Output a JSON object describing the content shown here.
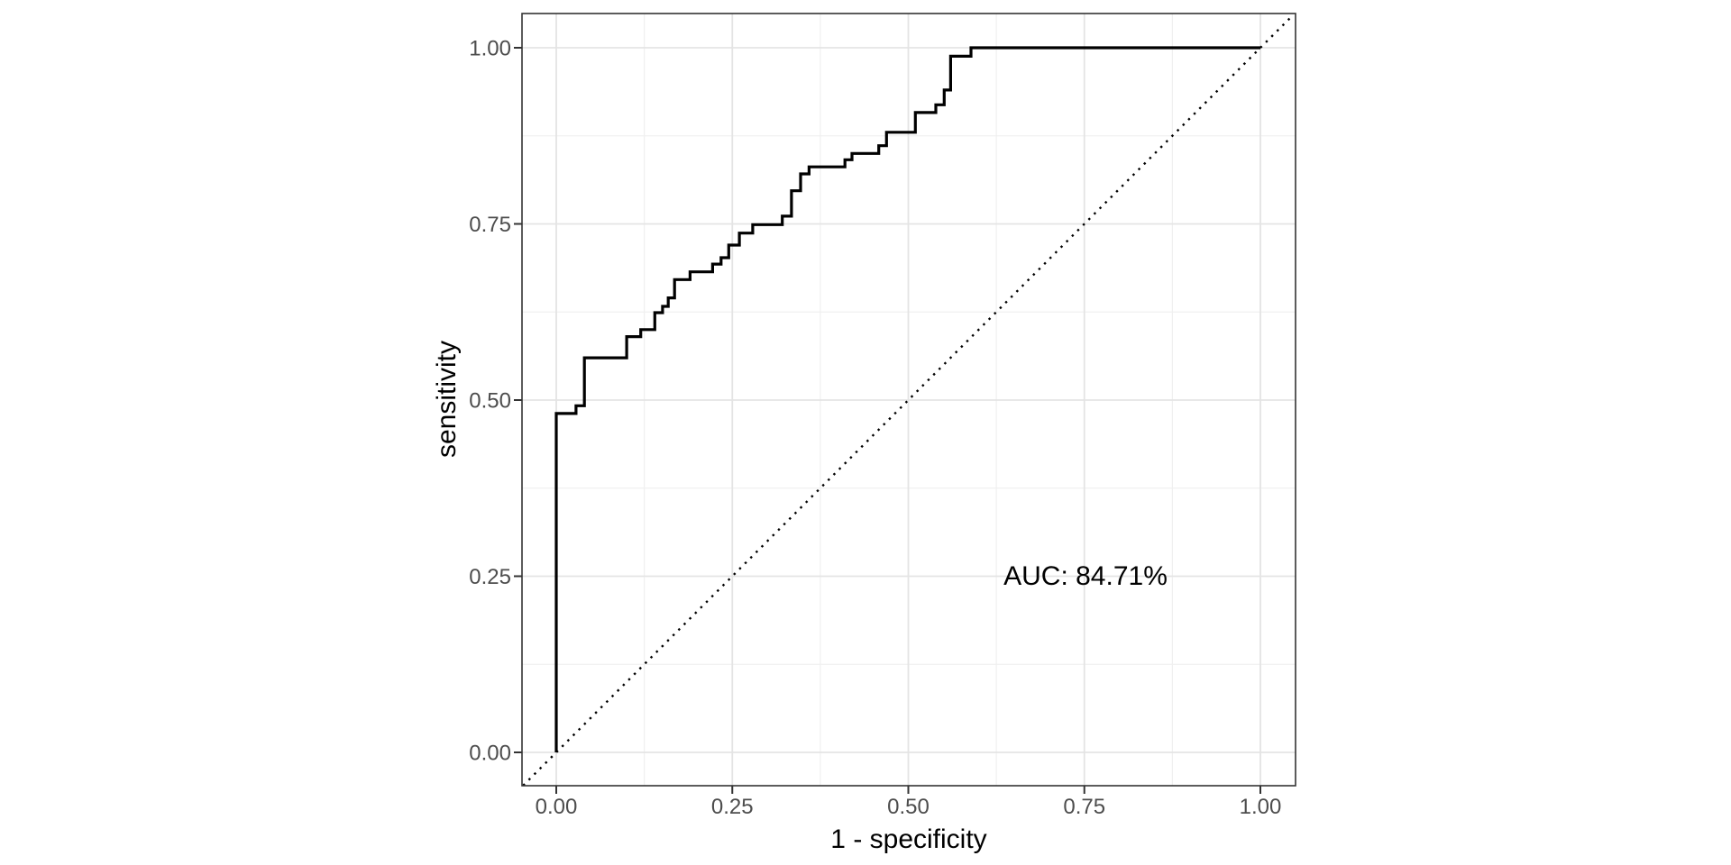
{
  "chart_data": {
    "type": "line",
    "subtype": "roc-step-curve",
    "title": "",
    "xlabel": "1 - specificity",
    "ylabel": "sensitivity",
    "x_ticks": {
      "values": [
        0,
        0.25,
        0.5,
        0.75,
        1
      ],
      "labels": [
        "0.00",
        "0.25",
        "0.50",
        "0.75",
        "1.00"
      ]
    },
    "y_ticks": {
      "values": [
        0,
        0.25,
        0.5,
        0.75,
        1
      ],
      "labels": [
        "0.00",
        "0.25",
        "0.50",
        "0.75",
        "1.00"
      ]
    },
    "x_minor_ticks": [
      0.125,
      0.375,
      0.625,
      0.875
    ],
    "y_minor_ticks": [
      0.125,
      0.375,
      0.625,
      0.875
    ],
    "xlim": [
      -0.049,
      1.05
    ],
    "ylim": [
      -0.047,
      1.047
    ],
    "grid": true,
    "legend_position": "none",
    "annotation": {
      "label": "AUC: 84.71%",
      "x": 0.75,
      "y": 0.25
    },
    "auc_percent": 84.71,
    "diagonal_reference": {
      "style": "dotted",
      "from": [
        -0.047,
        -0.047
      ],
      "to": [
        1.047,
        1.047
      ]
    },
    "series": [
      {
        "name": "roc-curve",
        "points": [
          [
            0,
            0
          ],
          [
            0,
            0.481
          ],
          [
            0.028,
            0.481
          ],
          [
            0.028,
            0.492
          ],
          [
            0.04,
            0.492
          ],
          [
            0.04,
            0.56
          ],
          [
            0.1,
            0.56
          ],
          [
            0.1,
            0.59
          ],
          [
            0.12,
            0.59
          ],
          [
            0.12,
            0.6
          ],
          [
            0.14,
            0.6
          ],
          [
            0.14,
            0.624
          ],
          [
            0.151,
            0.624
          ],
          [
            0.151,
            0.633
          ],
          [
            0.159,
            0.633
          ],
          [
            0.159,
            0.645
          ],
          [
            0.168,
            0.645
          ],
          [
            0.168,
            0.671
          ],
          [
            0.19,
            0.671
          ],
          [
            0.19,
            0.682
          ],
          [
            0.222,
            0.682
          ],
          [
            0.222,
            0.693
          ],
          [
            0.234,
            0.693
          ],
          [
            0.234,
            0.702
          ],
          [
            0.245,
            0.702
          ],
          [
            0.245,
            0.72
          ],
          [
            0.26,
            0.72
          ],
          [
            0.26,
            0.737
          ],
          [
            0.279,
            0.737
          ],
          [
            0.279,
            0.749
          ],
          [
            0.321,
            0.749
          ],
          [
            0.321,
            0.761
          ],
          [
            0.334,
            0.761
          ],
          [
            0.334,
            0.797
          ],
          [
            0.347,
            0.797
          ],
          [
            0.347,
            0.821
          ],
          [
            0.359,
            0.821
          ],
          [
            0.359,
            0.831
          ],
          [
            0.41,
            0.831
          ],
          [
            0.41,
            0.841
          ],
          [
            0.42,
            0.841
          ],
          [
            0.42,
            0.85
          ],
          [
            0.458,
            0.85
          ],
          [
            0.458,
            0.861
          ],
          [
            0.469,
            0.861
          ],
          [
            0.469,
            0.88
          ],
          [
            0.51,
            0.88
          ],
          [
            0.51,
            0.908
          ],
          [
            0.539,
            0.908
          ],
          [
            0.539,
            0.919
          ],
          [
            0.551,
            0.919
          ],
          [
            0.551,
            0.94
          ],
          [
            0.56,
            0.94
          ],
          [
            0.56,
            0.988
          ],
          [
            0.589,
            0.988
          ],
          [
            0.589,
            1
          ],
          [
            1,
            1
          ]
        ]
      }
    ],
    "colors": {
      "curve": "#000000",
      "diagonal": "#000000",
      "grid_major": "#E4E4E4",
      "grid_minor": "#F0F0F0",
      "panel_border": "#333333",
      "tick_mark": "#333333",
      "tick_label": "#4D4D4D",
      "axis_title": "#000000",
      "annotation_text": "#000000",
      "background": "#FFFFFF",
      "panel_background": "#FFFFFF"
    }
  }
}
